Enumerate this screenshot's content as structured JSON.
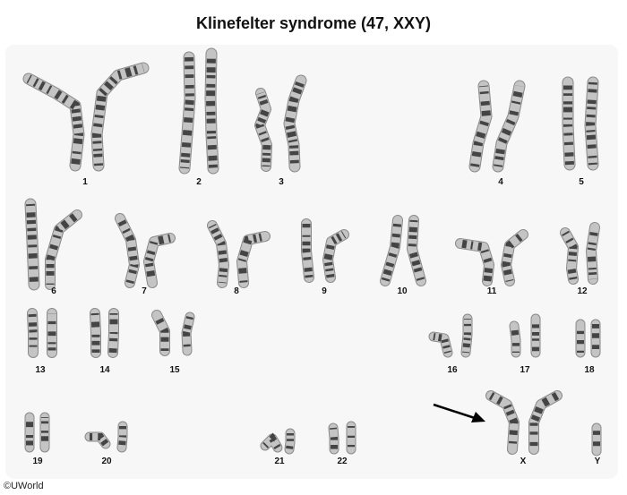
{
  "title": "Klinefelter syndrome (47, XXY)",
  "copyright": "©UWorld",
  "colors": {
    "chromatid": "#c4c4c4",
    "band": "#2e2e2e",
    "outline": "#8a8a8a",
    "arrow": "#000000",
    "panel": "#f7f7f7"
  },
  "chromosomes": [
    {
      "label": "1",
      "count": 2
    },
    {
      "label": "2",
      "count": 2
    },
    {
      "label": "3",
      "count": 2
    },
    {
      "label": "4",
      "count": 2
    },
    {
      "label": "5",
      "count": 2
    },
    {
      "label": "6",
      "count": 2
    },
    {
      "label": "7",
      "count": 2
    },
    {
      "label": "8",
      "count": 2
    },
    {
      "label": "9",
      "count": 2
    },
    {
      "label": "10",
      "count": 2
    },
    {
      "label": "11",
      "count": 2
    },
    {
      "label": "12",
      "count": 2
    },
    {
      "label": "13",
      "count": 2
    },
    {
      "label": "14",
      "count": 2
    },
    {
      "label": "15",
      "count": 2
    },
    {
      "label": "16",
      "count": 2
    },
    {
      "label": "17",
      "count": 2
    },
    {
      "label": "18",
      "count": 2
    },
    {
      "label": "19",
      "count": 2
    },
    {
      "label": "20",
      "count": 2
    },
    {
      "label": "21",
      "count": 2
    },
    {
      "label": "22",
      "count": 2
    },
    {
      "label": "X",
      "count": 2,
      "highlighted": true
    },
    {
      "label": "Y",
      "count": 1
    }
  ]
}
